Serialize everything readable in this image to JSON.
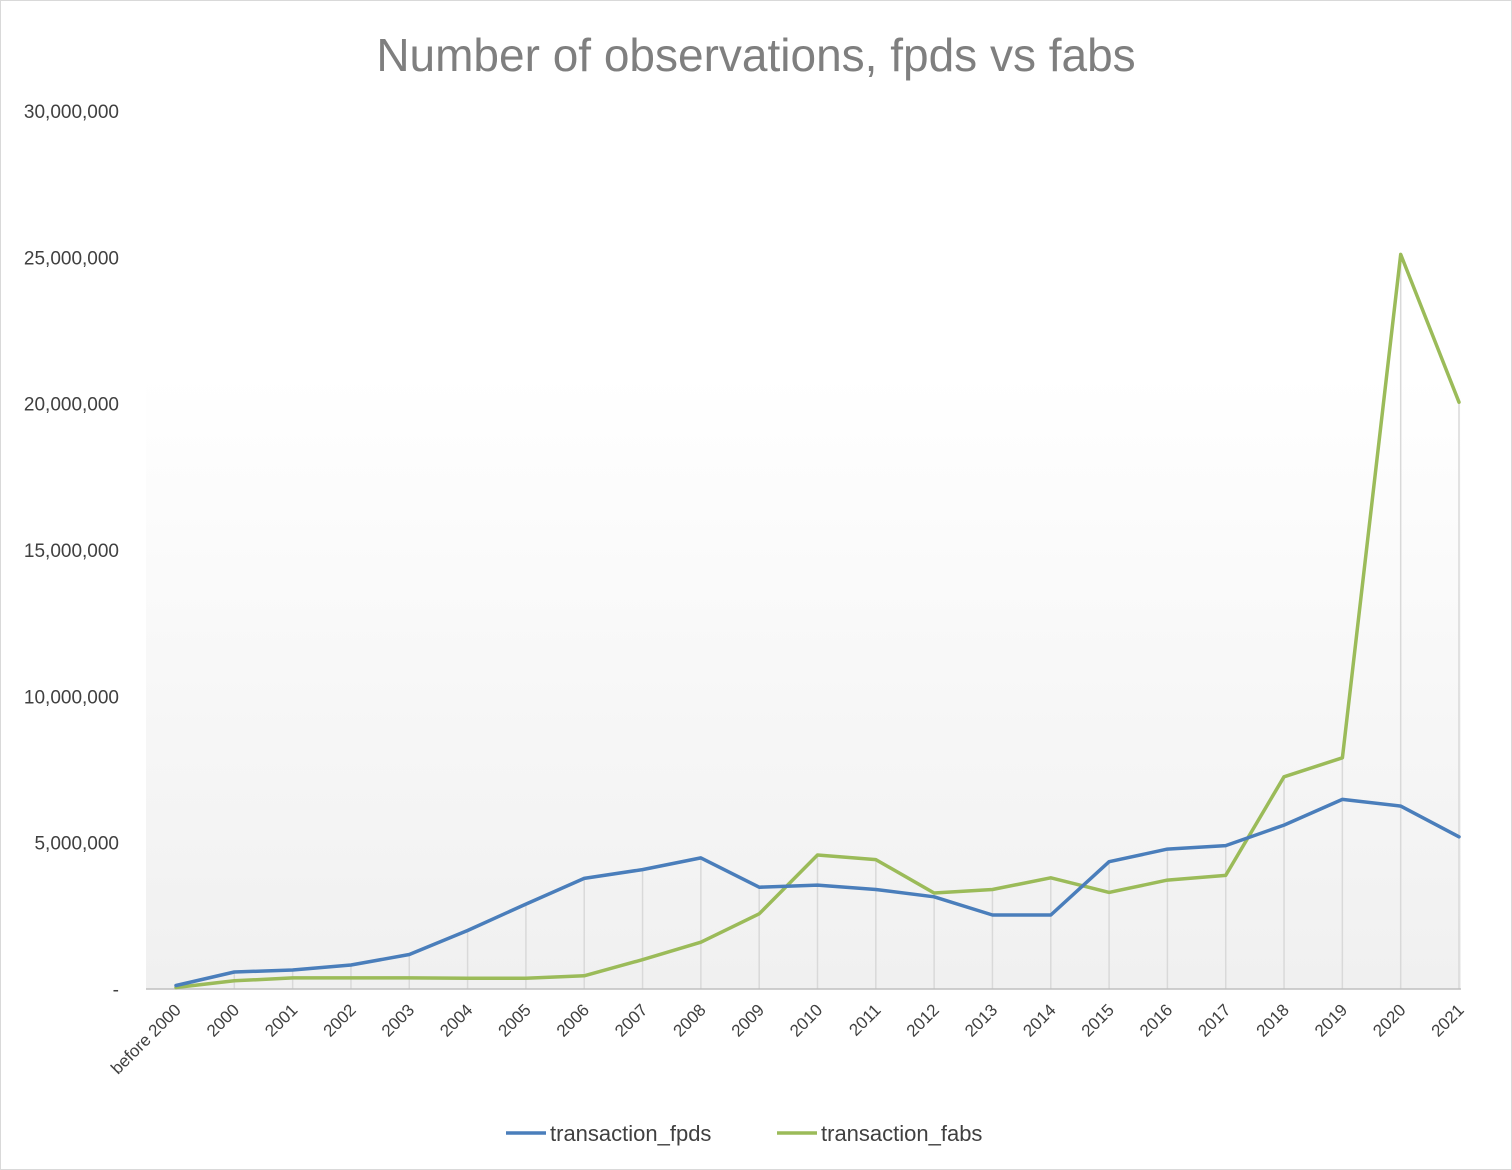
{
  "chart_data": {
    "type": "line",
    "title": "Number of observations, fpds vs fabs",
    "xlabel": "",
    "ylabel": "",
    "categories": [
      "before 2000",
      "2000",
      "2001",
      "2002",
      "2003",
      "2004",
      "2005",
      "2006",
      "2007",
      "2008",
      "2009",
      "2010",
      "2011",
      "2012",
      "2013",
      "2014",
      "2015",
      "2016",
      "2017",
      "2018",
      "2019",
      "2020",
      "2021"
    ],
    "series": [
      {
        "name": "transaction_fpds",
        "color": "#4a7ebb",
        "values": [
          120000,
          580000,
          650000,
          820000,
          1180000,
          2000000,
          2900000,
          3780000,
          4080000,
          4480000,
          3480000,
          3550000,
          3400000,
          3150000,
          2530000,
          2530000,
          4350000,
          4780000,
          4900000,
          5600000,
          6480000,
          6250000,
          5200000
        ]
      },
      {
        "name": "transaction_fabs",
        "color": "#9bbb59",
        "values": [
          50000,
          280000,
          380000,
          380000,
          380000,
          370000,
          370000,
          450000,
          1000000,
          1600000,
          2570000,
          4580000,
          4420000,
          3280000,
          3400000,
          3800000,
          3300000,
          3720000,
          3880000,
          7250000,
          7900000,
          25100000,
          20050000
        ]
      }
    ],
    "ylim": [
      0,
      30000000
    ],
    "yticks": [
      0,
      5000000,
      10000000,
      15000000,
      20000000,
      25000000,
      30000000
    ],
    "ytick_labels": [
      "-",
      "5,000,000",
      "10,000,000",
      "15,000,000",
      "20,000,000",
      "25,000,000",
      "30,000,000"
    ],
    "grid": "vertical drop lines at each category",
    "legend": "bottom-center"
  }
}
